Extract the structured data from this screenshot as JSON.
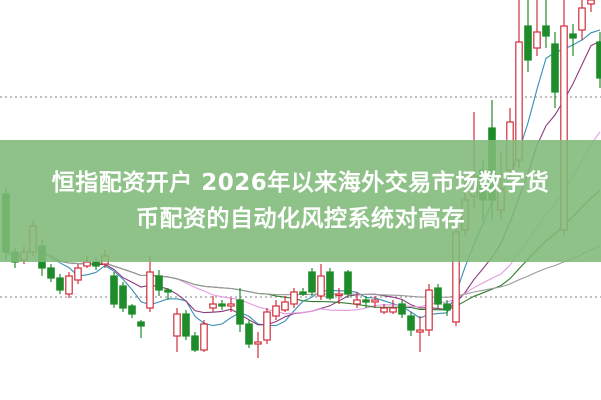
{
  "headline": {
    "line1": "恒指配资开户 2026年以来海外交易市场数字货",
    "line2": "币配资的自动化风控系统对高存"
  },
  "colors": {
    "banner": "#80ba78",
    "up_candle": "#d0303c",
    "down_candle": "#1e8c2a",
    "reference_line": "#999999"
  },
  "chart_data": {
    "type": "candlestick",
    "title": "",
    "xlabel": "",
    "ylabel": "",
    "axes_visible": false,
    "grid": false,
    "ylim": [
      0,
      100
    ],
    "reference_levels": [
      75.75,
      25.75
    ],
    "moving_averages": [
      {
        "period": 5,
        "color": "#3a8fb5"
      },
      {
        "period": 10,
        "color": "#8a3a7a"
      },
      {
        "period": 20,
        "color": "#e39ae3"
      },
      {
        "period": 30,
        "color": "#2e7d32"
      },
      {
        "period": 60,
        "color": "#9a9a9a"
      }
    ],
    "candles_ohlc": [
      [
        51.5,
        53,
        35,
        37
      ],
      [
        37,
        38,
        33,
        34.5
      ],
      [
        35,
        38.5,
        34,
        37
      ],
      [
        37,
        45,
        36,
        43.5
      ],
      [
        38.5,
        40,
        31,
        33
      ],
      [
        33,
        34,
        29.5,
        30.5
      ],
      [
        30.5,
        31.5,
        26.5,
        27.5
      ],
      [
        26.5,
        32,
        25.5,
        31
      ],
      [
        30,
        34,
        29,
        33
      ],
      [
        33.5,
        36,
        33,
        34.5
      ],
      [
        34.5,
        35.5,
        32.5,
        33.5
      ],
      [
        34,
        37.5,
        33,
        36
      ],
      [
        31,
        32,
        23,
        24
      ],
      [
        28.5,
        29.5,
        22,
        23
      ],
      [
        23.5,
        24,
        20.5,
        21.5
      ],
      [
        19.5,
        20,
        15.5,
        18.5
      ],
      [
        23,
        36,
        22,
        32
      ],
      [
        31,
        32.5,
        26,
        27.5
      ],
      [
        27.5,
        28,
        25,
        27
      ],
      [
        16,
        23,
        12,
        21.5
      ],
      [
        21.5,
        22.5,
        15,
        16
      ],
      [
        16,
        17,
        12,
        12.5
      ],
      [
        12.5,
        20,
        12,
        19
      ],
      [
        23,
        26,
        22,
        24
      ],
      [
        24,
        25,
        22.5,
        23.5
      ],
      [
        23.5,
        25.5,
        22,
        24
      ],
      [
        25,
        28,
        17,
        19
      ],
      [
        19,
        20,
        13,
        14
      ],
      [
        14,
        17,
        10.5,
        14.5
      ],
      [
        15,
        23,
        14,
        22
      ],
      [
        21,
        25,
        20,
        23.5
      ],
      [
        22.5,
        26,
        22,
        24.5
      ],
      [
        24,
        28,
        23,
        27
      ],
      [
        27,
        28,
        26,
        26.5
      ],
      [
        32,
        33,
        26,
        27
      ],
      [
        26,
        34,
        25,
        31
      ],
      [
        32,
        33,
        25,
        25.5
      ],
      [
        26.5,
        28,
        24,
        26.5
      ],
      [
        32,
        32.5,
        25.5,
        26.5
      ],
      [
        24,
        27,
        23,
        25
      ],
      [
        25,
        26,
        23,
        24.5
      ],
      [
        24.5,
        26,
        23,
        25
      ],
      [
        22,
        24,
        21.5,
        23
      ],
      [
        22,
        25,
        21.5,
        23
      ],
      [
        24,
        25,
        20.5,
        21.5
      ],
      [
        21,
        22,
        16,
        17.5
      ],
      [
        17,
        21,
        12,
        17.5
      ],
      [
        17.5,
        29,
        16,
        27.5
      ],
      [
        28,
        29,
        23,
        24
      ],
      [
        24,
        25,
        21,
        22.5
      ],
      [
        19.5,
        43,
        18.5,
        42
      ],
      [
        42.5,
        55,
        41,
        50
      ],
      [
        51,
        72,
        48,
        56
      ],
      [
        57.5,
        60,
        45,
        50
      ],
      [
        68,
        75,
        45,
        50
      ],
      [
        47.5,
        62,
        45,
        52.5
      ],
      [
        57.5,
        73,
        55,
        69.5
      ],
      [
        60,
        100,
        58,
        89.5
      ],
      [
        93.5,
        100,
        82,
        85
      ],
      [
        88,
        100,
        86,
        92
      ],
      [
        93.5,
        100,
        88,
        91
      ],
      [
        89,
        92,
        73,
        77
      ],
      [
        42.5,
        100,
        41,
        93.5
      ],
      [
        91.5,
        94,
        86,
        90.5
      ],
      [
        92.5,
        100,
        90,
        98
      ],
      [
        99,
        100,
        97,
        100
      ],
      [
        89.5,
        92,
        78,
        80.5
      ]
    ]
  }
}
